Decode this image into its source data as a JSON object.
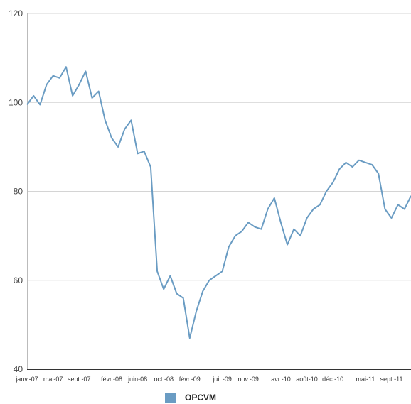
{
  "chart_data": {
    "type": "line",
    "title": "",
    "xlabel": "",
    "ylabel": "",
    "ylim": [
      40,
      120
    ],
    "y_ticks": [
      40,
      60,
      80,
      100,
      120
    ],
    "x_range": [
      "2007-01",
      "2011-12"
    ],
    "x_ticks": [
      {
        "label": "janv.-07",
        "x": "2007-01"
      },
      {
        "label": "mai-07",
        "x": "2007-05"
      },
      {
        "label": "sept.-07",
        "x": "2007-09"
      },
      {
        "label": "févr.-08",
        "x": "2008-02"
      },
      {
        "label": "juin-08",
        "x": "2008-06"
      },
      {
        "label": "oct.-08",
        "x": "2008-10"
      },
      {
        "label": "févr.-09",
        "x": "2009-02"
      },
      {
        "label": "juil.-09",
        "x": "2009-07"
      },
      {
        "label": "nov.-09",
        "x": "2009-11"
      },
      {
        "label": "avr.-10",
        "x": "2010-04"
      },
      {
        "label": "août-10",
        "x": "2010-08"
      },
      {
        "label": "déc.-10",
        "x": "2010-12"
      },
      {
        "label": "mai-11",
        "x": "2011-05"
      },
      {
        "label": "sept.-11",
        "x": "2011-09"
      }
    ],
    "grid": true,
    "legend_position": "bottom-center",
    "series": [
      {
        "name": "OPCVM",
        "color": "#6a9cc3",
        "x": [
          "2007-01",
          "2007-02",
          "2007-03",
          "2007-04",
          "2007-05",
          "2007-06",
          "2007-07",
          "2007-08",
          "2007-09",
          "2007-10",
          "2007-11",
          "2007-12",
          "2008-01",
          "2008-02",
          "2008-03",
          "2008-04",
          "2008-05",
          "2008-06",
          "2008-07",
          "2008-08",
          "2008-09",
          "2008-10",
          "2008-11",
          "2008-12",
          "2009-01",
          "2009-02",
          "2009-03",
          "2009-04",
          "2009-05",
          "2009-06",
          "2009-07",
          "2009-08",
          "2009-09",
          "2009-10",
          "2009-11",
          "2009-12",
          "2010-01",
          "2010-02",
          "2010-03",
          "2010-04",
          "2010-05",
          "2010-06",
          "2010-07",
          "2010-08",
          "2010-09",
          "2010-10",
          "2010-11",
          "2010-12",
          "2011-01",
          "2011-02",
          "2011-03",
          "2011-04",
          "2011-05",
          "2011-06",
          "2011-07",
          "2011-08",
          "2011-09",
          "2011-10",
          "2011-11",
          "2011-12"
        ],
        "values": [
          99.5,
          101.5,
          99.5,
          104,
          106,
          105.5,
          108,
          101.5,
          104,
          107,
          101,
          102.5,
          96,
          92,
          90,
          94,
          96,
          88.5,
          89,
          85.5,
          62,
          58,
          61,
          57,
          56,
          47,
          53,
          57.5,
          60,
          61,
          62,
          67.5,
          70,
          71,
          73,
          72,
          71.5,
          76,
          78.5,
          73,
          68,
          71.5,
          70,
          74,
          76,
          77,
          80,
          82,
          85,
          86.5,
          85.5,
          87,
          86.5,
          86,
          84,
          76,
          74,
          77,
          76,
          79
        ]
      }
    ]
  }
}
